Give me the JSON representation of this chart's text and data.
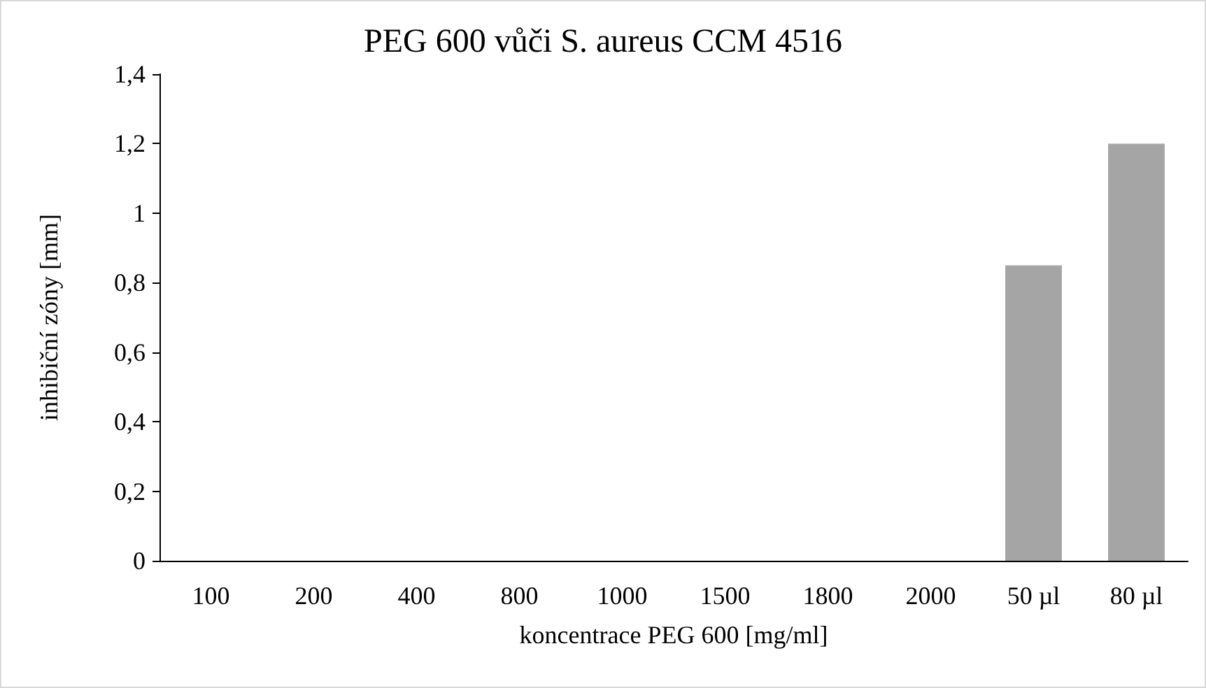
{
  "chart_data": {
    "type": "bar",
    "title": "PEG 600 vůči S. aureus CCM 4516",
    "xlabel": "koncentrace PEG 600 [mg/ml]",
    "ylabel": "inhibiční zóny [mm]",
    "categories": [
      "100",
      "200",
      "400",
      "800",
      "1000",
      "1500",
      "1800",
      "2000",
      "50 µl",
      "80 µl"
    ],
    "values": [
      0,
      0,
      0,
      0,
      0,
      0,
      0,
      0,
      0.85,
      1.2
    ],
    "color": "#a5a5a5",
    "ylim": [
      0,
      1.4
    ],
    "yticks": [
      0,
      {
        "value": 0.2,
        "label": "0,2"
      },
      {
        "value": 0.4,
        "label": "0,4"
      },
      {
        "value": 0.6,
        "label": "0,6"
      },
      {
        "value": 0.8,
        "label": "0,8"
      },
      1,
      {
        "value": 1.2,
        "label": "1,2"
      },
      {
        "value": 1.4,
        "label": "1,4"
      }
    ],
    "grid": false
  }
}
